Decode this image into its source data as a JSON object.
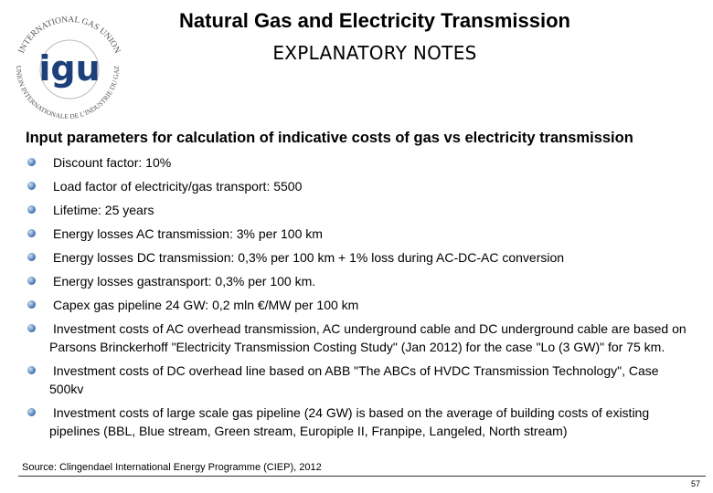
{
  "logo": {
    "mark": "igu",
    "ring_top": "INTERNATIONAL GAS UNION",
    "ring_bottom": "UNION INTERNATIONALE DE L'INDUSTRIE DU GAZ"
  },
  "header": {
    "title": "Natural Gas and Electricity Transmission",
    "subtitle": "EXPLANATORY NOTES"
  },
  "section": {
    "heading": "Input parameters for calculation of indicative costs of gas vs electricity transmission",
    "bullets": [
      "Discount factor: 10%",
      "Load factor of electricity/gas transport: 5500",
      "Lifetime: 25 years",
      "Energy losses AC transmission: 3% per 100 km",
      "Energy losses DC transmission: 0,3% per 100 km + 1% loss during AC-DC-AC conversion",
      "Energy losses gastransport: 0,3% per 100 km.",
      "Capex gas pipeline 24 GW: 0,2 mln €/MW per 100 km",
      "Investment costs of AC overhead transmission, AC underground cable and DC  underground cable are based on Parsons Brinckerhoff \"Electricity Transmission Costing Study\" (Jan 2012) for the case \"Lo (3 GW)\" for 75 km.",
      "Investment costs of DC overhead line based on ABB \"The ABCs of HVDC Transmission Technology\", Case 500kv",
      "Investment costs of large scale gas pipeline (24 GW) is based on the average of building costs of existing pipelines (BBL, Blue stream, Green stream, Europiple II, Franpipe, Langeled, North stream)"
    ]
  },
  "footer": {
    "source": "Source: Clingendael International Energy Programme (CIEP), 2012",
    "page_number": "57"
  }
}
